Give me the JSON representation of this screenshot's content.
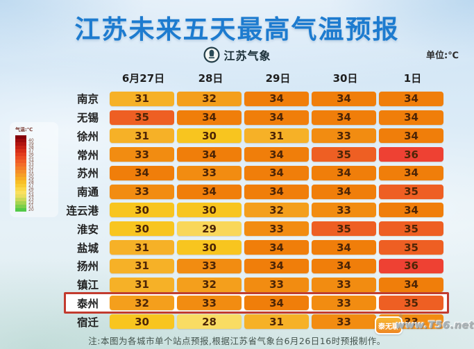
{
  "page": {
    "title": "江苏未来五天最高气温预报",
    "brand": {
      "name": "江苏气象"
    },
    "unit_label": "单位:℃",
    "note": "注:本图为各城市单个站点预报,根据江苏省气象台6月26日16时预报制作。",
    "watermark": {
      "site": "www.T56.net",
      "logo_text": "泰无聊",
      "reg_mark": "®"
    }
  },
  "colors": {
    "title_blue": "#1d7bcf",
    "highlight_border": "#c23b2e",
    "cell_text": "#4d2506"
  },
  "chart_data": {
    "type": "heatmap",
    "title": "江苏未来五天最高气温预报",
    "unit": "℃",
    "columns": [
      "6月27日",
      "28日",
      "29日",
      "30日",
      "1日"
    ],
    "rows": [
      {
        "city": "南京",
        "values": [
          31,
          32,
          34,
          34,
          34
        ]
      },
      {
        "city": "无锡",
        "values": [
          35,
          34,
          34,
          34,
          34
        ]
      },
      {
        "city": "徐州",
        "values": [
          31,
          30,
          31,
          33,
          34
        ]
      },
      {
        "city": "常州",
        "values": [
          33,
          34,
          34,
          35,
          36
        ]
      },
      {
        "city": "苏州",
        "values": [
          34,
          33,
          34,
          34,
          34
        ]
      },
      {
        "city": "南通",
        "values": [
          33,
          34,
          34,
          34,
          35
        ]
      },
      {
        "city": "连云港",
        "values": [
          30,
          30,
          32,
          33,
          34
        ]
      },
      {
        "city": "淮安",
        "values": [
          30,
          29,
          33,
          35,
          35
        ]
      },
      {
        "city": "盐城",
        "values": [
          31,
          30,
          34,
          34,
          35
        ]
      },
      {
        "city": "扬州",
        "values": [
          31,
          33,
          34,
          34,
          36
        ]
      },
      {
        "city": "镇江",
        "values": [
          31,
          32,
          33,
          33,
          34
        ]
      },
      {
        "city": "泰州",
        "values": [
          32,
          33,
          34,
          33,
          35
        ]
      },
      {
        "city": "宿迁",
        "values": [
          30,
          28,
          31,
          33,
          33
        ]
      }
    ],
    "highlighted_city": "泰州",
    "value_colors": {
      "28": "#f9dc63",
      "29": "#f9d75a",
      "30": "#f8c51f",
      "31": "#f6b127",
      "32": "#f49f1c",
      "33": "#f28c11",
      "34": "#f07e0a",
      "35": "#ee5f23",
      "36": "#ee4133"
    },
    "legend": {
      "label": "气温:℃",
      "min": 20,
      "max": 40,
      "items": [
        {
          "label": "",
          "color": "#85000a"
        },
        {
          "label": "40",
          "color": "#9c0a0c"
        },
        {
          "label": "39",
          "color": "#b11410"
        },
        {
          "label": "38",
          "color": "#c52013"
        },
        {
          "label": "37",
          "color": "#d62e18"
        },
        {
          "label": "36",
          "color": "#e23d1e"
        },
        {
          "label": "35",
          "color": "#ea4d23"
        },
        {
          "label": "34",
          "color": "#f05d27"
        },
        {
          "label": "33",
          "color": "#f36e2a"
        },
        {
          "label": "32",
          "color": "#f47e29"
        },
        {
          "label": "31",
          "color": "#f58e27"
        },
        {
          "label": "30",
          "color": "#f69e25"
        },
        {
          "label": "29",
          "color": "#f7ae23"
        },
        {
          "label": "28",
          "color": "#f8be26"
        },
        {
          "label": "27",
          "color": "#f9cb33"
        },
        {
          "label": "26",
          "color": "#fad748"
        },
        {
          "label": "25",
          "color": "#fae05e"
        },
        {
          "label": "24",
          "color": "#e9dd5e"
        },
        {
          "label": "23",
          "color": "#c9d957"
        },
        {
          "label": "22",
          "color": "#a5d450"
        },
        {
          "label": "21",
          "color": "#7dcf4a"
        },
        {
          "label": "20",
          "color": "#53c947"
        }
      ]
    }
  }
}
